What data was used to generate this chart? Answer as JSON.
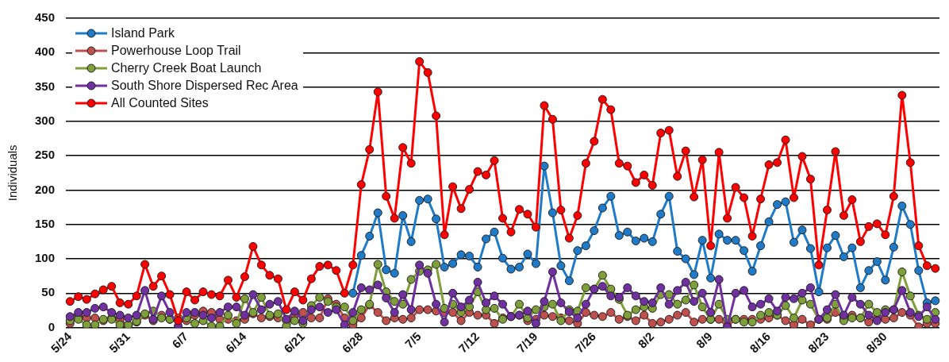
{
  "chart_data": {
    "type": "line",
    "ylabel": "Individuals",
    "categories": [
      "5/24",
      null,
      null,
      null,
      null,
      null,
      null,
      "5/31",
      null,
      null,
      null,
      null,
      null,
      null,
      "6/7",
      null,
      null,
      null,
      null,
      null,
      null,
      "6/14",
      null,
      null,
      null,
      null,
      null,
      null,
      "6/21",
      null,
      null,
      null,
      null,
      null,
      null,
      "6/28",
      null,
      null,
      null,
      null,
      null,
      null,
      "7/5",
      null,
      null,
      null,
      null,
      null,
      null,
      "7/12",
      null,
      null,
      null,
      null,
      null,
      null,
      "7/19",
      null,
      null,
      null,
      null,
      null,
      null,
      "7/26",
      null,
      null,
      null,
      null,
      null,
      null,
      "8/2",
      null,
      null,
      null,
      null,
      null,
      null,
      "8/9",
      null,
      null,
      null,
      null,
      null,
      null,
      "8/16",
      null,
      null,
      null,
      null,
      null,
      null,
      "8/23",
      null,
      null,
      null,
      null,
      null,
      null,
      "8/30",
      null,
      null,
      null,
      null,
      null,
      null
    ],
    "series": [
      {
        "name": "Island Park",
        "color": "#1f7bc8",
        "values": [
          null,
          null,
          null,
          null,
          null,
          null,
          null,
          null,
          null,
          null,
          null,
          null,
          null,
          null,
          null,
          null,
          null,
          null,
          null,
          null,
          null,
          null,
          null,
          null,
          null,
          null,
          null,
          null,
          null,
          null,
          null,
          null,
          null,
          null,
          50,
          105,
          133,
          167,
          84,
          79,
          163,
          125,
          185,
          187,
          158,
          88,
          93,
          106,
          104,
          88,
          129,
          139,
          101,
          85,
          88,
          107,
          93,
          235,
          167,
          90,
          68,
          112,
          119,
          141,
          174,
          191,
          134,
          139,
          126,
          130,
          125,
          165,
          191,
          111,
          100,
          77,
          127,
          72,
          136,
          127,
          127,
          112,
          82,
          119,
          154,
          179,
          183,
          124,
          142,
          115,
          52,
          116,
          134,
          103,
          116,
          58,
          83,
          96,
          69,
          117,
          177,
          150,
          83,
          36,
          39
        ]
      },
      {
        "name": "Powerhouse Loop Trail",
        "color": "#c0504d",
        "values": [
          6,
          18,
          14,
          14,
          10,
          14,
          12,
          2,
          8,
          18,
          10,
          18,
          12,
          12,
          10,
          18,
          24,
          22,
          12,
          12,
          10,
          12,
          20,
          14,
          16,
          14,
          10,
          18,
          22,
          14,
          14,
          42,
          34,
          14,
          4,
          14,
          33,
          22,
          10,
          14,
          12,
          14,
          26,
          26,
          24,
          22,
          22,
          10,
          22,
          18,
          18,
          6,
          14,
          16,
          18,
          10,
          12,
          18,
          16,
          14,
          10,
          6,
          22,
          18,
          16,
          22,
          12,
          16,
          10,
          18,
          6,
          8,
          12,
          18,
          22,
          8,
          12,
          12,
          12,
          2,
          12,
          12,
          12,
          12,
          14,
          18,
          10,
          4,
          12,
          4,
          12,
          12,
          22,
          14,
          18,
          14,
          8,
          14,
          12,
          14,
          22,
          18,
          1,
          6,
          6
        ]
      },
      {
        "name": "Cherry Creek Boat Launch",
        "color": "#7f9f3a",
        "values": [
          10,
          12,
          4,
          4,
          12,
          12,
          4,
          4,
          9,
          20,
          24,
          14,
          12,
          14,
          14,
          6,
          10,
          2,
          2,
          18,
          6,
          42,
          22,
          44,
          18,
          20,
          2,
          10,
          6,
          32,
          44,
          38,
          30,
          30,
          10,
          26,
          34,
          92,
          52,
          38,
          34,
          70,
          82,
          84,
          92,
          28,
          34,
          22,
          30,
          52,
          26,
          28,
          12,
          16,
          34,
          14,
          26,
          30,
          34,
          10,
          26,
          24,
          58,
          56,
          76,
          56,
          41,
          18,
          26,
          30,
          28,
          48,
          48,
          34,
          40,
          62,
          30,
          12,
          34,
          12,
          12,
          8,
          8,
          18,
          22,
          18,
          32,
          14,
          40,
          34,
          12,
          14,
          34,
          10,
          14,
          14,
          34,
          22,
          26,
          26,
          81,
          46,
          18,
          12,
          22
        ]
      },
      {
        "name": "South Shore Dispersed Rec Area",
        "color": "#7030a0",
        "values": [
          16,
          22,
          22,
          28,
          30,
          22,
          18,
          14,
          18,
          54,
          12,
          46,
          22,
          2,
          22,
          22,
          18,
          14,
          22,
          30,
          30,
          18,
          48,
          26,
          34,
          38,
          12,
          24,
          10,
          26,
          30,
          22,
          26,
          4,
          22,
          58,
          55,
          62,
          43,
          22,
          48,
          26,
          91,
          79,
          34,
          8,
          50,
          30,
          40,
          66,
          36,
          46,
          34,
          16,
          18,
          24,
          6,
          38,
          81,
          36,
          23,
          14,
          34,
          56,
          60,
          46,
          44,
          58,
          46,
          38,
          36,
          58,
          34,
          54,
          66,
          38,
          50,
          22,
          70,
          1,
          50,
          54,
          30,
          34,
          42,
          24,
          44,
          42,
          50,
          58,
          12,
          26,
          48,
          18,
          44,
          34,
          18,
          10,
          22,
          26,
          54,
          22,
          16,
          30,
          12
        ]
      },
      {
        "name": "All Counted Sites",
        "color": "#ff0000",
        "values": [
          38,
          45,
          41,
          49,
          55,
          60,
          36,
          34,
          46,
          92,
          60,
          75,
          48,
          10,
          52,
          40,
          52,
          48,
          46,
          69,
          44,
          74,
          118,
          91,
          76,
          71,
          26,
          52,
          40,
          71,
          89,
          91,
          83,
          50,
          91,
          208,
          259,
          343,
          191,
          159,
          262,
          239,
          387,
          371,
          308,
          135,
          205,
          173,
          201,
          227,
          222,
          243,
          159,
          139,
          172,
          165,
          146,
          323,
          303,
          171,
          130,
          163,
          239,
          271,
          332,
          317,
          239,
          235,
          211,
          222,
          207,
          283,
          287,
          220,
          257,
          190,
          244,
          119,
          255,
          159,
          204,
          189,
          133,
          187,
          237,
          240,
          273,
          189,
          249,
          216,
          91,
          171,
          256,
          163,
          186,
          125,
          147,
          151,
          135,
          191,
          338,
          240,
          119,
          90,
          86
        ]
      }
    ],
    "ylim": [
      0,
      450
    ],
    "yticks": [
      0,
      50,
      100,
      150,
      200,
      250,
      300,
      350,
      400,
      450
    ],
    "grid": "y",
    "legend": "top left",
    "marker": "circle",
    "line_style": "solid"
  }
}
